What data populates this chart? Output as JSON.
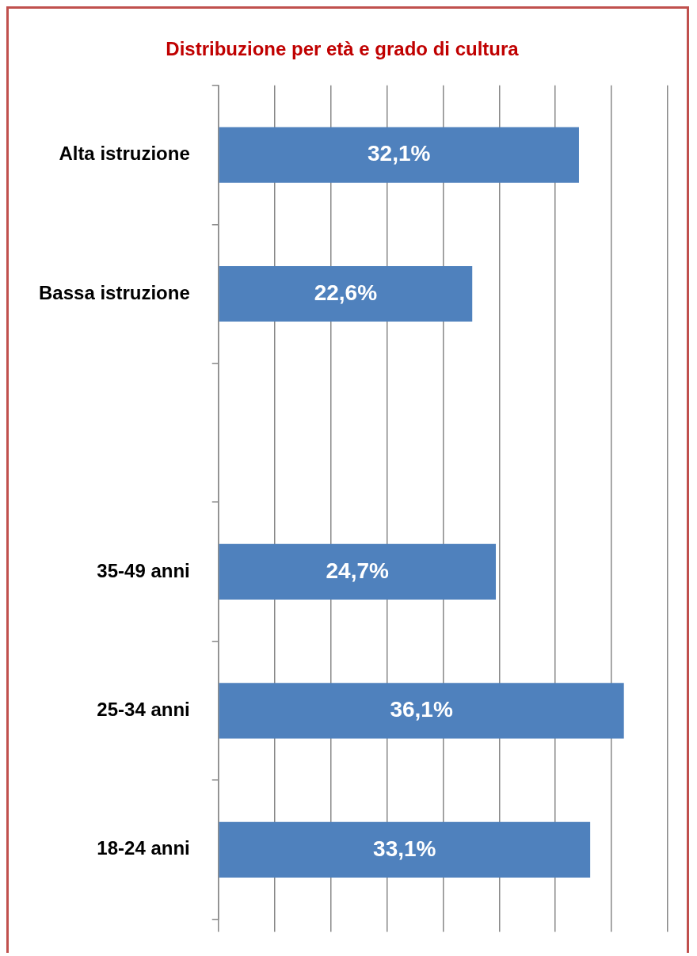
{
  "chart_data": {
    "type": "bar",
    "orientation": "horizontal",
    "title": "Distribuzione per età e grado di cultura",
    "categories": [
      "Alta istruzione",
      "Bassa istruzione",
      null,
      "35-49 anni",
      "25-34 anni",
      "18-24 anni"
    ],
    "values": [
      32.1,
      22.6,
      null,
      24.7,
      36.1,
      33.1
    ],
    "value_labels": [
      "32,1%",
      "22,6%",
      null,
      "24,7%",
      "36,1%",
      "33,1%"
    ],
    "color": "#4f81bd",
    "xlim": [
      0,
      40
    ],
    "xticks": [
      {
        "value": 0,
        "label": null
      },
      {
        "value": 5,
        "label": null
      },
      {
        "value": 10,
        "label": null
      },
      {
        "value": 15,
        "label": null
      },
      {
        "value": 20,
        "label": null
      },
      {
        "value": 25,
        "label": null
      },
      {
        "value": 30,
        "label": null
      },
      {
        "value": 35,
        "label": null
      },
      {
        "value": 40,
        "label": null
      }
    ],
    "grid": "x",
    "tick_labels": "y",
    "legend": false
  }
}
